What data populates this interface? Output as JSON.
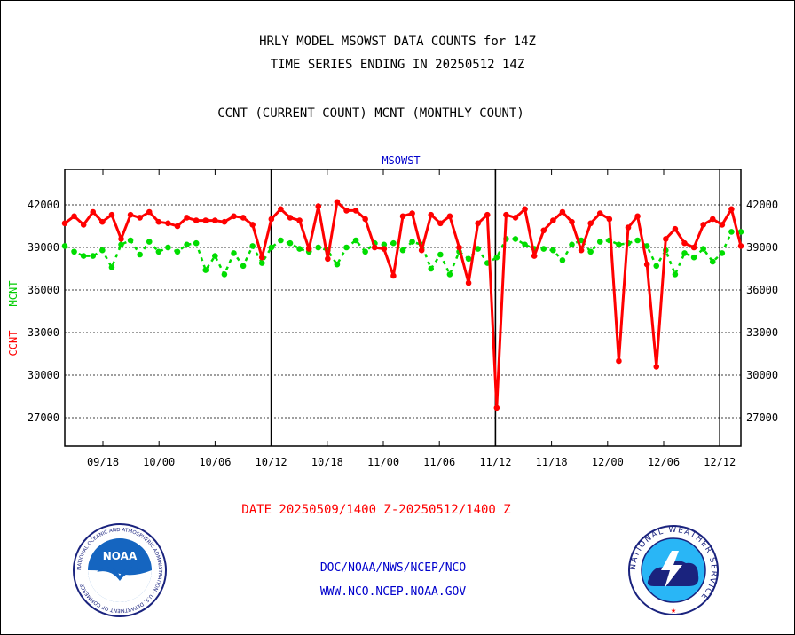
{
  "titles": {
    "line1": "HRLY MODEL MSOWST DATA COUNTS for 14Z",
    "line2": "TIME SERIES ENDING IN 20250512 14Z",
    "line3": "CCNT (CURRENT COUNT) MCNT (MONTHLY COUNT)"
  },
  "footer": {
    "date_range": "DATE 20250509/1400 Z-20250512/1400 Z",
    "link1": "DOC/NOAA/NWS/NCEP/NCO",
    "link2": "WWW.NCO.NCEP.NOAA.GOV"
  },
  "logos": {
    "noaa_text": "NOAA",
    "nws_ring_text": "NATIONAL WEATHER SERVICE",
    "noaa_ring_text": "NATIONAL OCEANIC AND ATMOSPHERIC ADMINISTRATION · U.S. DEPARTMENT OF COMMERCE"
  },
  "chart_data": {
    "type": "line",
    "title": "MSOWST",
    "ylabel_ccnt": "CCNT",
    "ylabel_mcnt": "MCNT",
    "ylim": [
      25000,
      44500
    ],
    "yticks": [
      27000,
      30000,
      33000,
      36000,
      39000,
      42000
    ],
    "xticks": [
      "09/18",
      "10/00",
      "10/06",
      "10/12",
      "10/18",
      "11/00",
      "11/06",
      "11/12",
      "11/18",
      "12/00",
      "12/06",
      "12/12"
    ],
    "day_boundaries": [
      "10/12",
      "11/12",
      "12/12"
    ],
    "grid": true,
    "colors": {
      "ccnt": "#ff0000",
      "mcnt": "#00dd00",
      "title": "#0000cc"
    },
    "series": [
      {
        "name": "CCNT",
        "color": "#ff0000",
        "values": [
          40700,
          41200,
          40600,
          41500,
          40800,
          41300,
          39600,
          41300,
          41100,
          41500,
          40800,
          40700,
          40500,
          41100,
          40900,
          40900,
          40900,
          40800,
          41200,
          41100,
          40600,
          38300,
          41000,
          41700,
          41100,
          40900,
          38900,
          41900,
          38200,
          42200,
          41600,
          41600,
          41000,
          39000,
          38900,
          37000,
          41200,
          41400,
          38800,
          41300,
          40700,
          41200,
          39000,
          36500,
          40700,
          41300,
          27700,
          41300,
          41100,
          41700,
          38400,
          40200,
          40900,
          41500,
          40800,
          38800,
          40700,
          41400,
          41000,
          31000,
          40400,
          41200,
          37800,
          30600,
          39600,
          40300,
          39300,
          39000,
          40600,
          41000,
          40600,
          41700,
          39100
        ],
        "note": "hourly values 09/14 through 12/14"
      },
      {
        "name": "MCNT",
        "color": "#00dd00",
        "values": [
          39100,
          38700,
          38400,
          38400,
          38800,
          37600,
          39200,
          39500,
          38500,
          39400,
          38700,
          39000,
          38700,
          39200,
          39300,
          37400,
          38400,
          37100,
          38600,
          37700,
          39100,
          37900,
          39000,
          39500,
          39300,
          38900,
          38700,
          39000,
          38800,
          37800,
          39000,
          39500,
          38700,
          39300,
          39200,
          39300,
          38800,
          39400,
          39200,
          37500,
          38500,
          37100,
          38700,
          38200,
          38900,
          37900,
          38300,
          39600,
          39600,
          39200,
          38900,
          38900,
          38800,
          38100,
          39200,
          39500,
          38700,
          39400,
          39500,
          39200,
          39300,
          39500,
          39100,
          37700,
          38800,
          37100,
          38600,
          38300,
          38900,
          38000,
          38600,
          40100,
          40100
        ],
        "note": "hourly values 09/14 through 12/14"
      }
    ]
  }
}
